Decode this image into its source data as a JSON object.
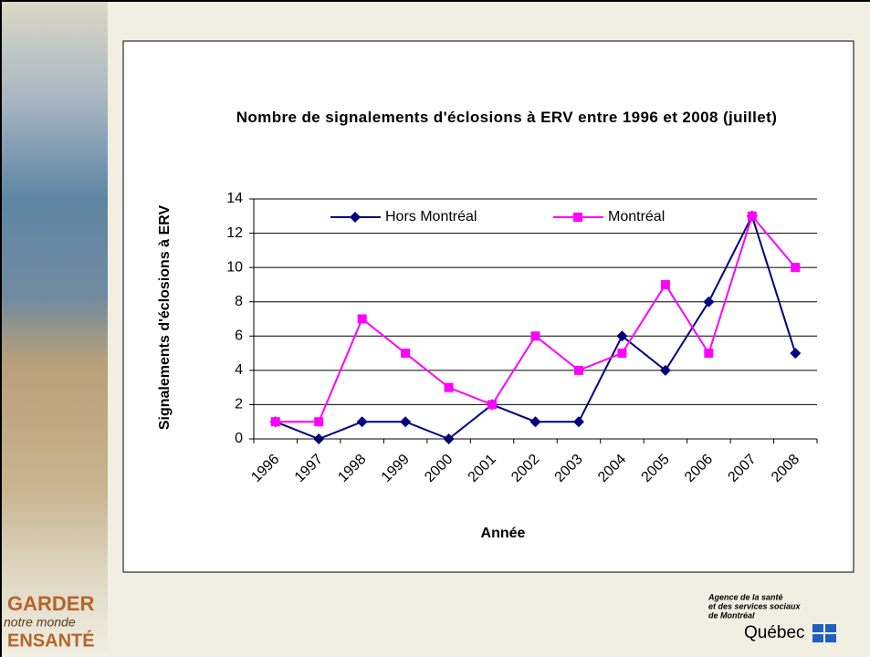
{
  "chart_data": {
    "type": "line",
    "title": "Nombre de signalements d'éclosions à ERV entre 1996 et 2008 (juillet)",
    "xlabel": "Année",
    "ylabel": "Signalements d'éclosions à ERV",
    "categories": [
      "1996",
      "1997",
      "1998",
      "1999",
      "2000",
      "2001",
      "2002",
      "2003",
      "2004",
      "2005",
      "2006",
      "2007",
      "2008"
    ],
    "series": [
      {
        "name": "Hors Montréal",
        "color": "#000080",
        "marker": "diamond",
        "values": [
          1,
          0,
          1,
          1,
          0,
          2,
          1,
          1,
          6,
          4,
          8,
          13,
          5
        ]
      },
      {
        "name": "Montréal",
        "color": "#ff00ff",
        "marker": "square",
        "values": [
          1,
          1,
          7,
          5,
          3,
          2,
          6,
          4,
          5,
          9,
          5,
          13,
          10
        ]
      }
    ],
    "ylim": [
      0,
      14
    ],
    "yticks": [
      0,
      2,
      4,
      6,
      8,
      10,
      12,
      14
    ],
    "grid": true,
    "legend": "top"
  },
  "slide": {
    "logo": [
      "GARDER",
      "notre monde",
      "ENSANTÉ"
    ],
    "agency": [
      "Agence de la santé",
      "et des services sociaux",
      "de Montréal"
    ],
    "government": "Québec"
  }
}
